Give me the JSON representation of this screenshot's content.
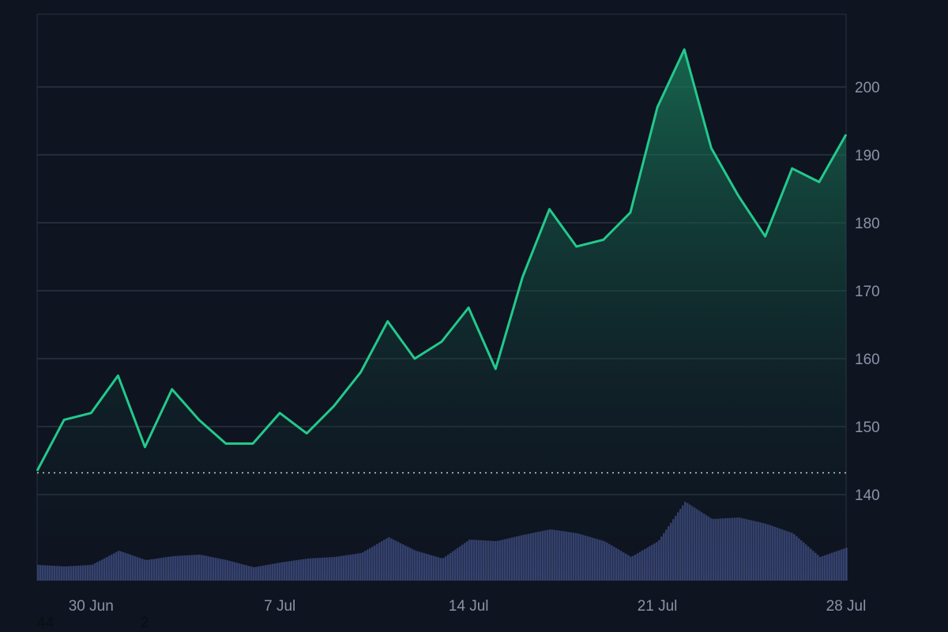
{
  "colors": {
    "background": "#0e1420",
    "grid": "#2b3343",
    "price_line": "#23c98c",
    "area_top": "#1a7e5c",
    "volume": "#3a4677",
    "baseline": "#c9ced8"
  },
  "stray_labels": [
    "44",
    "2"
  ],
  "chart_data": {
    "type": "area",
    "title": "",
    "xlabel": "",
    "ylabel": "",
    "ylim": [
      130,
      210
    ],
    "x_range": [
      "2023-06-28",
      "2023-07-28"
    ],
    "y_ticks": [
      140,
      150,
      160,
      170,
      180,
      190,
      200
    ],
    "x_ticks": [
      {
        "date": "2023-06-30",
        "label": "30 Jun"
      },
      {
        "date": "2023-07-07",
        "label": "7 Jul"
      },
      {
        "date": "2023-07-14",
        "label": "14 Jul"
      },
      {
        "date": "2023-07-21",
        "label": "21 Jul"
      },
      {
        "date": "2023-07-28",
        "label": "28 Jul"
      }
    ],
    "grid": true,
    "y_axis_side": "right",
    "baseline_value": 143.2,
    "series": [
      {
        "x": [
          "2023-06-28",
          "2023-06-29",
          "2023-06-30",
          "2023-07-01",
          "2023-07-02",
          "2023-07-03",
          "2023-07-04",
          "2023-07-05",
          "2023-07-06",
          "2023-07-07",
          "2023-07-08",
          "2023-07-09",
          "2023-07-10",
          "2023-07-11",
          "2023-07-12",
          "2023-07-13",
          "2023-07-14",
          "2023-07-15",
          "2023-07-16",
          "2023-07-17",
          "2023-07-18",
          "2023-07-19",
          "2023-07-20",
          "2023-07-21",
          "2023-07-22",
          "2023-07-23",
          "2023-07-24",
          "2023-07-25",
          "2023-07-26",
          "2023-07-27",
          "2023-07-28"
        ],
        "values": [
          143.5,
          151,
          152,
          157.5,
          147,
          155.5,
          151,
          147.5,
          147.5,
          152,
          149,
          153,
          158,
          165.5,
          160,
          162.5,
          167.5,
          158.5,
          172,
          182,
          176.5,
          177.5,
          181.5,
          197,
          205.5,
          191,
          184,
          178,
          188,
          186,
          193
        ]
      }
    ],
    "volume": {
      "x": [
        "2023-06-28",
        "2023-06-29",
        "2023-06-30",
        "2023-07-01",
        "2023-07-02",
        "2023-07-03",
        "2023-07-04",
        "2023-07-05",
        "2023-07-06",
        "2023-07-07",
        "2023-07-08",
        "2023-07-09",
        "2023-07-10",
        "2023-07-11",
        "2023-07-12",
        "2023-07-13",
        "2023-07-14",
        "2023-07-15",
        "2023-07-16",
        "2023-07-17",
        "2023-07-18",
        "2023-07-19",
        "2023-07-20",
        "2023-07-21",
        "2023-07-22",
        "2023-07-23",
        "2023-07-24",
        "2023-07-25",
        "2023-07-26",
        "2023-07-27",
        "2023-07-28"
      ],
      "values": [
        20,
        18,
        20,
        38,
        26,
        31,
        33,
        26,
        17,
        23,
        28,
        30,
        35,
        55,
        38,
        28,
        52,
        50,
        58,
        65,
        60,
        50,
        30,
        50,
        100,
        78,
        80,
        72,
        60,
        30,
        42
      ]
    }
  }
}
